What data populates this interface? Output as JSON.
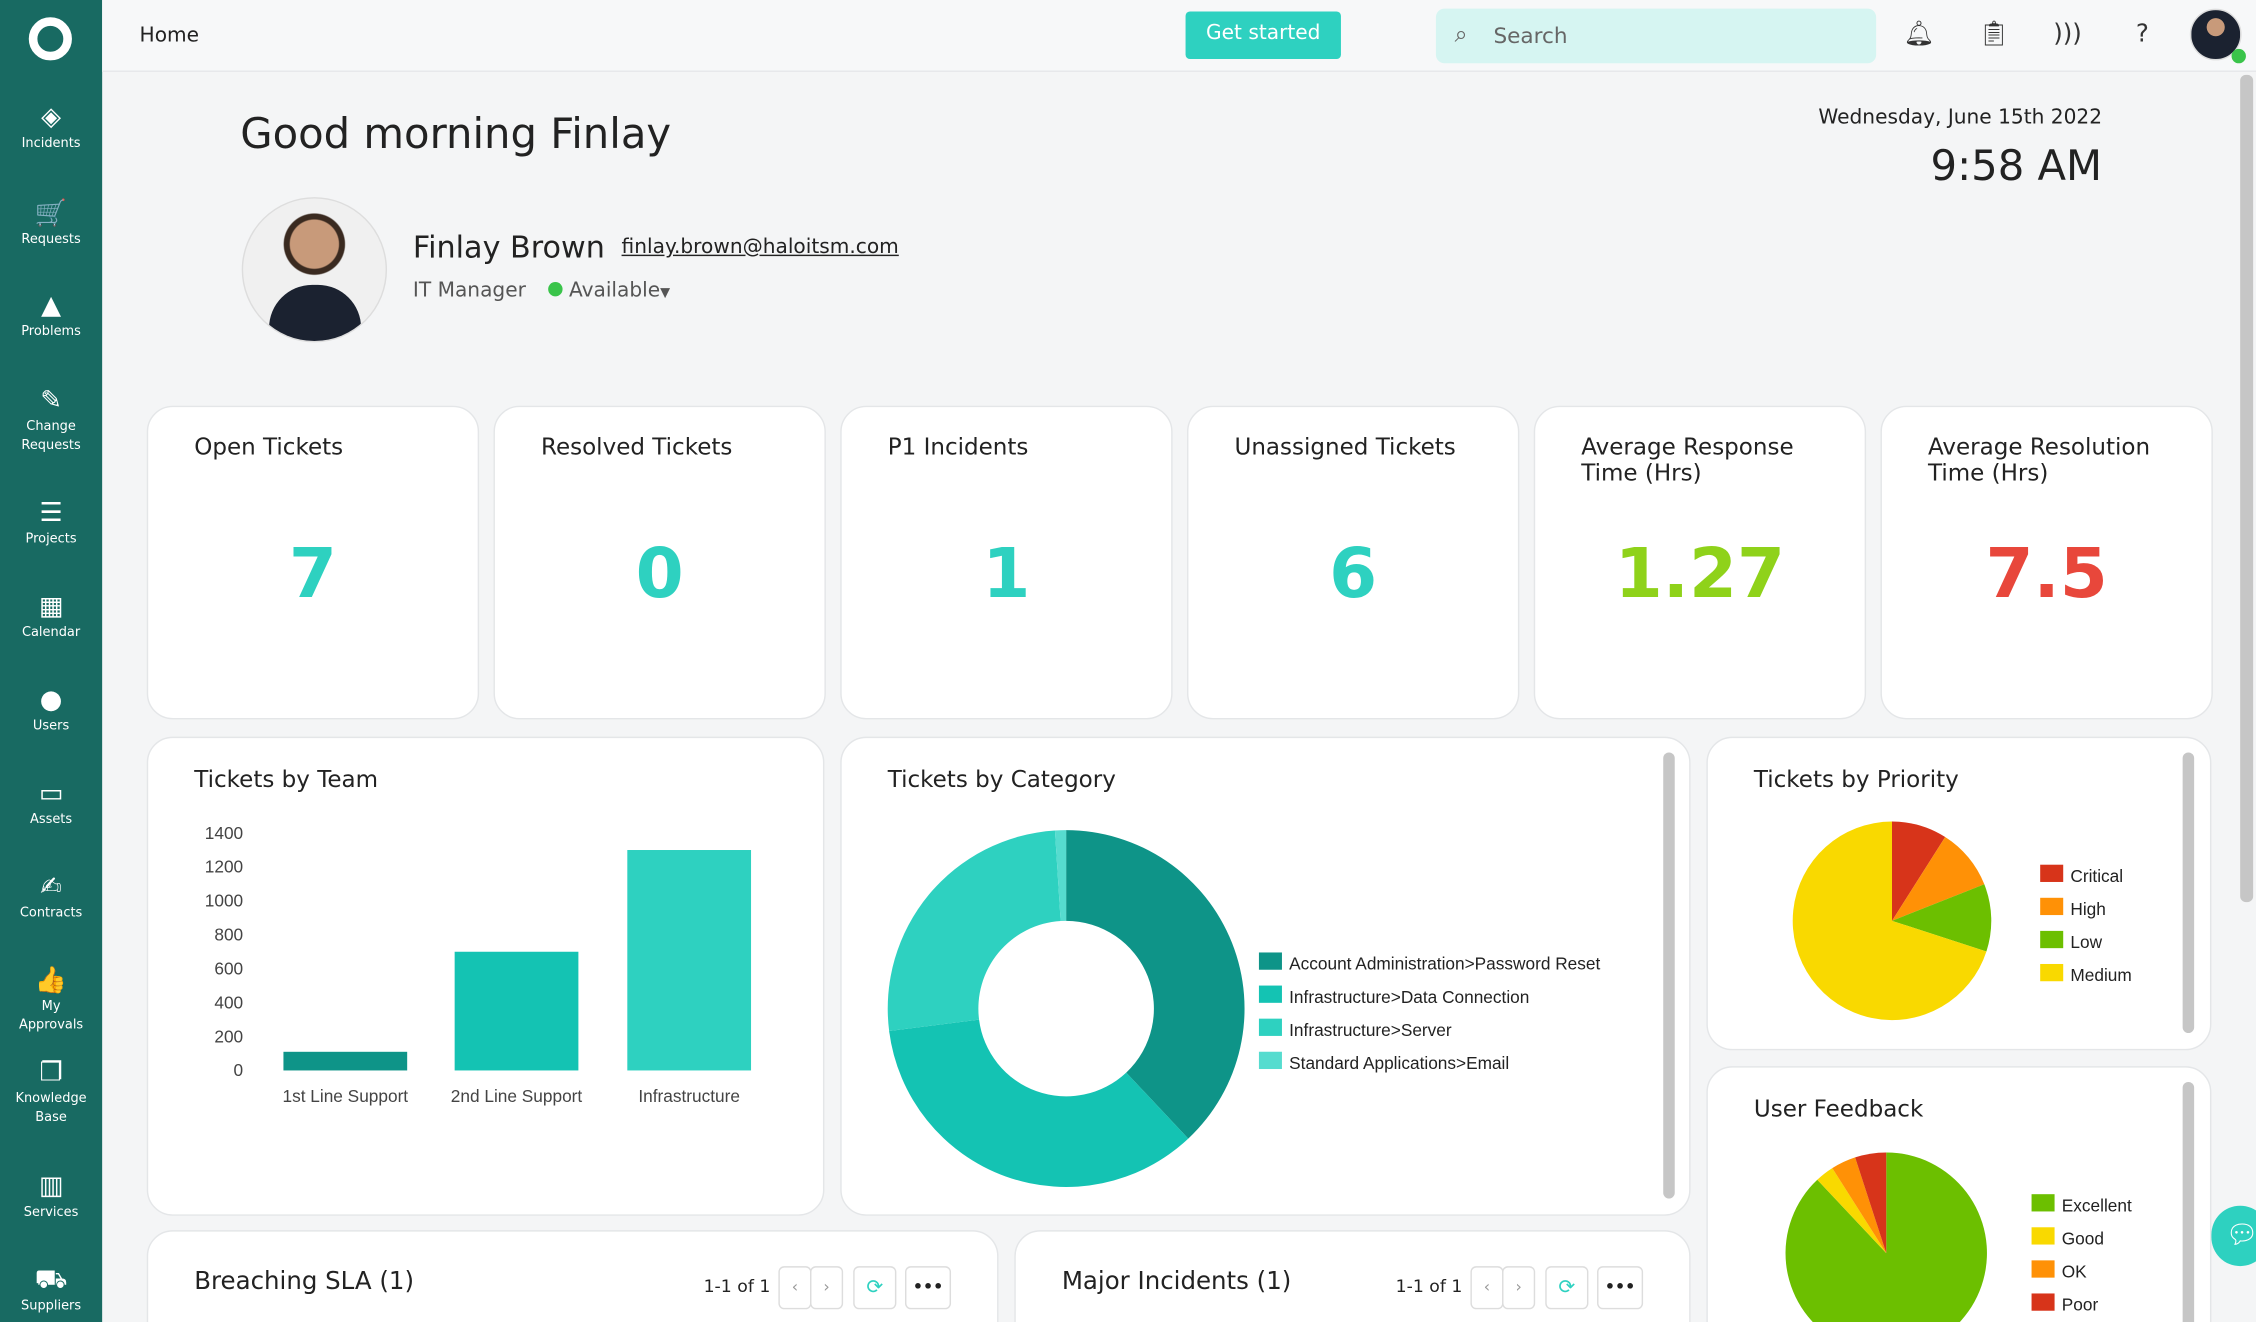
{
  "sidebar": {
    "items": [
      {
        "label": "Incidents",
        "icon": "ticket-icon",
        "glyph": "◈"
      },
      {
        "label": "Requests",
        "icon": "cart-icon",
        "glyph": "🛒"
      },
      {
        "label": "Problems",
        "icon": "warning-icon",
        "glyph": "▲"
      },
      {
        "label": "Change Requests",
        "icon": "edit-icon",
        "glyph": "✎"
      },
      {
        "label": "Projects",
        "icon": "projects-icon",
        "glyph": "☰"
      },
      {
        "label": "Calendar",
        "icon": "calendar-icon",
        "glyph": "▦"
      },
      {
        "label": "Users",
        "icon": "user-icon",
        "glyph": "●"
      },
      {
        "label": "Assets",
        "icon": "laptop-icon",
        "glyph": "▭"
      },
      {
        "label": "Contracts",
        "icon": "contract-icon",
        "glyph": "✍"
      },
      {
        "label": "My Approvals",
        "icon": "thumbs-up-icon",
        "glyph": "👍"
      },
      {
        "label": "Knowledge Base",
        "icon": "books-icon",
        "glyph": "❐"
      },
      {
        "label": "Services",
        "icon": "book-icon",
        "glyph": "▥"
      },
      {
        "label": "Suppliers",
        "icon": "truck-icon",
        "glyph": "⛟"
      }
    ]
  },
  "header": {
    "breadcrumb": "Home",
    "get_started": "Get started",
    "search_placeholder": "Search"
  },
  "greeting": "Good morning Finlay",
  "date": "Wednesday, June 15th 2022",
  "time": "9:58 AM",
  "profile": {
    "name": "Finlay Brown",
    "email": "finlay.brown@haloitsm.com",
    "role": "IT Manager",
    "status": "Available",
    "status_color": "#3ac44a"
  },
  "kpis": [
    {
      "title": "Open Tickets",
      "value": "7",
      "color": "#2ed1c0"
    },
    {
      "title": "Resolved Tickets",
      "value": "0",
      "color": "#2ed1c0"
    },
    {
      "title": "P1 Incidents",
      "value": "1",
      "color": "#2ed1c0"
    },
    {
      "title": "Unassigned Tickets",
      "value": "6",
      "color": "#2ed1c0"
    },
    {
      "title": "Average Response Time (Hrs)",
      "value": "1.27",
      "color": "#8fd21a"
    },
    {
      "title": "Average Resolution Time (Hrs)",
      "value": "7.5",
      "color": "#e8473b"
    }
  ],
  "chart_data": [
    {
      "type": "bar",
      "title": "Tickets by Team",
      "categories": [
        "1st Line Support",
        "2nd Line Support",
        "Infrastructure"
      ],
      "values": [
        110,
        700,
        1300
      ],
      "ylim": [
        0,
        1400
      ],
      "yticks": [
        "0",
        "200",
        "400",
        "600",
        "800",
        "1000",
        "1200",
        "1400"
      ],
      "colors": [
        "#0e9488",
        "#14c3b3",
        "#2ed1c0"
      ]
    },
    {
      "type": "pie",
      "subtype": "donut",
      "title": "Tickets by Category",
      "labels": [
        "Account Administration>Password Reset",
        "Infrastructure>Data Connection",
        "Infrastructure>Server",
        "Standard Applications>Email"
      ],
      "values": [
        38,
        35,
        26,
        1
      ],
      "colors": [
        "#0e9488",
        "#14c3b3",
        "#2ed1c0",
        "#56dccf"
      ],
      "legend": "right"
    },
    {
      "type": "pie",
      "title": "Tickets by Priority",
      "labels": [
        "Critical",
        "High",
        "Low",
        "Medium"
      ],
      "values": [
        9,
        10,
        11,
        70
      ],
      "colors": [
        "#d7341a",
        "#ff9106",
        "#6cbf00",
        "#f9d900"
      ],
      "legend": "right"
    },
    {
      "type": "pie",
      "title": "User Feedback",
      "labels": [
        "Excellent",
        "Good",
        "OK",
        "Poor"
      ],
      "values": [
        88,
        3,
        4,
        5
      ],
      "colors": [
        "#6cbf00",
        "#f9d900",
        "#ff9106",
        "#d7341a"
      ],
      "legend": "right"
    }
  ],
  "tables": [
    {
      "title": "Breaching SLA (1)",
      "pagination": "1-1 of 1"
    },
    {
      "title": "Major Incidents (1)",
      "pagination": "1-1 of 1"
    }
  ]
}
